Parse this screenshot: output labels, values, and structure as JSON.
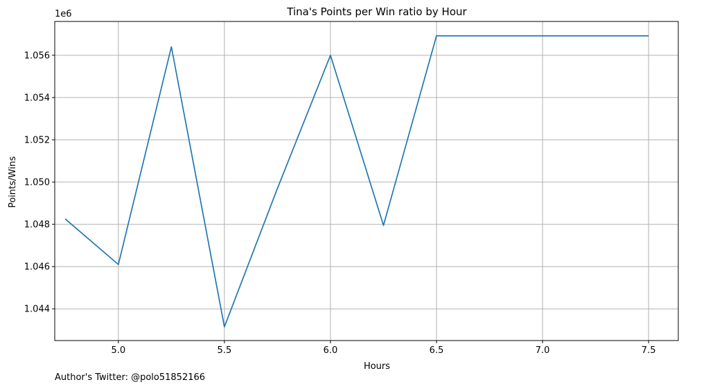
{
  "chart_data": {
    "type": "line",
    "title": "Tina's Points per Win ratio by Hour",
    "xlabel": "Hours",
    "ylabel": "Points/Wins",
    "y_offset_label": "1e6",
    "xlim": [
      4.7,
      7.64
    ],
    "ylim": [
      1.0425,
      1.0576
    ],
    "x_ticks": [
      5.0,
      5.5,
      6.0,
      6.5,
      7.0,
      7.5
    ],
    "x_tick_labels": [
      "5.0",
      "5.5",
      "6.0",
      "6.5",
      "7.0",
      "7.5"
    ],
    "y_ticks": [
      1.044,
      1.046,
      1.048,
      1.05,
      1.052,
      1.054,
      1.056
    ],
    "y_tick_labels": [
      "1.044",
      "1.046",
      "1.048",
      "1.050",
      "1.052",
      "1.054",
      "1.056"
    ],
    "grid": true,
    "line_color": "#1f77b4",
    "x": [
      4.75,
      5.0,
      5.25,
      5.5,
      5.75,
      6.0,
      6.25,
      6.5,
      6.75,
      7.0,
      7.25,
      7.5
    ],
    "y": [
      1.04825,
      1.0461,
      1.0564,
      1.04315,
      1.0497,
      1.056,
      1.04795,
      1.05692,
      1.05692,
      1.05692,
      1.05692,
      1.05692
    ]
  },
  "footer": {
    "author": "Author's Twitter: @polo51852166"
  }
}
